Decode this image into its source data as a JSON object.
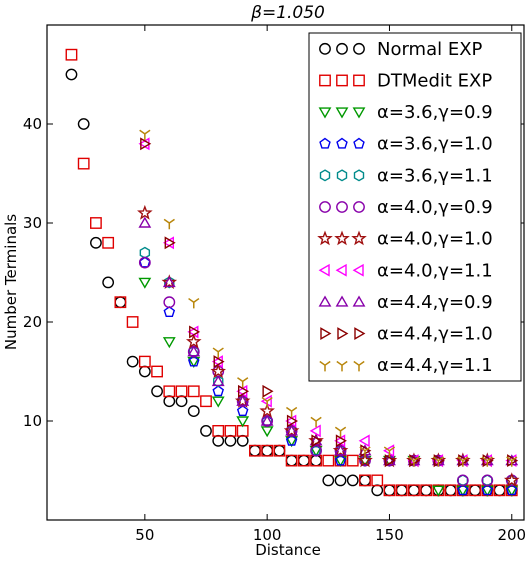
{
  "chart_data": {
    "type": "scatter",
    "title": "β=1.050",
    "xlabel": "Distance",
    "ylabel": "Number Terminals",
    "xlim": [
      10,
      205
    ],
    "ylim": [
      0,
      50
    ],
    "xticks": [
      50,
      100,
      150,
      200
    ],
    "yticks": [
      10,
      20,
      30,
      40
    ],
    "grid": false,
    "legend_placement": "top-right",
    "series": [
      {
        "name": "Normal EXP",
        "marker": "circle",
        "color": "#000000",
        "points": [
          [
            20,
            45
          ],
          [
            25,
            40
          ],
          [
            30,
            28
          ],
          [
            35,
            24
          ],
          [
            40,
            22
          ],
          [
            45,
            16
          ],
          [
            50,
            15
          ],
          [
            55,
            13
          ],
          [
            60,
            12
          ],
          [
            65,
            12
          ],
          [
            70,
            11
          ],
          [
            75,
            9
          ],
          [
            80,
            8
          ],
          [
            85,
            8
          ],
          [
            90,
            8
          ],
          [
            95,
            7
          ],
          [
            100,
            7
          ],
          [
            105,
            7
          ],
          [
            110,
            6
          ],
          [
            115,
            6
          ],
          [
            120,
            6
          ],
          [
            125,
            4
          ],
          [
            130,
            4
          ],
          [
            135,
            4
          ],
          [
            140,
            4
          ],
          [
            145,
            3
          ],
          [
            150,
            3
          ],
          [
            155,
            3
          ],
          [
            160,
            3
          ],
          [
            165,
            3
          ],
          [
            170,
            3
          ],
          [
            175,
            3
          ],
          [
            180,
            3
          ],
          [
            185,
            3
          ],
          [
            190,
            3
          ],
          [
            195,
            3
          ],
          [
            200,
            3
          ]
        ]
      },
      {
        "name": "DTMedit EXP",
        "marker": "square",
        "color": "#e00000",
        "points": [
          [
            20,
            47
          ],
          [
            25,
            36
          ],
          [
            30,
            30
          ],
          [
            35,
            28
          ],
          [
            40,
            22
          ],
          [
            45,
            20
          ],
          [
            50,
            16
          ],
          [
            55,
            15
          ],
          [
            60,
            13
          ],
          [
            65,
            13
          ],
          [
            70,
            13
          ],
          [
            75,
            12
          ],
          [
            80,
            9
          ],
          [
            85,
            9
          ],
          [
            90,
            9
          ],
          [
            95,
            7
          ],
          [
            100,
            7
          ],
          [
            105,
            7
          ],
          [
            110,
            6
          ],
          [
            115,
            6
          ],
          [
            120,
            6
          ],
          [
            125,
            6
          ],
          [
            130,
            6
          ],
          [
            135,
            6
          ],
          [
            140,
            4
          ],
          [
            145,
            4
          ],
          [
            150,
            3
          ],
          [
            155,
            3
          ],
          [
            160,
            3
          ],
          [
            165,
            3
          ],
          [
            170,
            3
          ],
          [
            175,
            3
          ],
          [
            180,
            3
          ],
          [
            185,
            3
          ],
          [
            190,
            3
          ],
          [
            195,
            3
          ],
          [
            200,
            3
          ]
        ]
      },
      {
        "name": "α=3.6,γ=0.9",
        "marker": "triangle-down",
        "color": "#009900",
        "points": [
          [
            50,
            24
          ],
          [
            60,
            18
          ],
          [
            70,
            16
          ],
          [
            80,
            12
          ],
          [
            90,
            10
          ],
          [
            100,
            9
          ],
          [
            110,
            8
          ],
          [
            120,
            7
          ],
          [
            130,
            6
          ],
          [
            140,
            6
          ],
          [
            150,
            6
          ],
          [
            160,
            6
          ],
          [
            170,
            3
          ],
          [
            180,
            3
          ],
          [
            190,
            3
          ],
          [
            200,
            3
          ]
        ]
      },
      {
        "name": "α=3.6,γ=1.0",
        "marker": "pentagon",
        "color": "#0000ee",
        "points": [
          [
            50,
            26
          ],
          [
            60,
            21
          ],
          [
            70,
            16
          ],
          [
            80,
            13
          ],
          [
            90,
            11
          ],
          [
            100,
            10
          ],
          [
            110,
            8
          ],
          [
            120,
            7
          ],
          [
            130,
            6
          ],
          [
            140,
            6
          ],
          [
            150,
            6
          ],
          [
            160,
            6
          ],
          [
            170,
            6
          ],
          [
            180,
            3
          ],
          [
            190,
            3
          ],
          [
            200,
            3
          ]
        ]
      },
      {
        "name": "α=3.6,γ=1.1",
        "marker": "hexagon",
        "color": "#008b8b",
        "points": [
          [
            50,
            27
          ],
          [
            60,
            24
          ],
          [
            70,
            17
          ],
          [
            80,
            14
          ],
          [
            90,
            12
          ],
          [
            100,
            10
          ],
          [
            110,
            9
          ],
          [
            120,
            7
          ],
          [
            130,
            7
          ],
          [
            140,
            6
          ],
          [
            150,
            6
          ],
          [
            160,
            6
          ],
          [
            170,
            6
          ],
          [
            180,
            4
          ],
          [
            190,
            4
          ],
          [
            200,
            4
          ]
        ]
      },
      {
        "name": "α=4.0,γ=0.9",
        "marker": "circle",
        "color": "#8800aa",
        "points": [
          [
            50,
            26
          ],
          [
            60,
            22
          ],
          [
            70,
            17
          ],
          [
            80,
            15
          ],
          [
            90,
            12
          ],
          [
            100,
            10
          ],
          [
            110,
            9
          ],
          [
            120,
            7
          ],
          [
            130,
            7
          ],
          [
            140,
            6
          ],
          [
            150,
            6
          ],
          [
            160,
            6
          ],
          [
            170,
            6
          ],
          [
            180,
            4
          ],
          [
            190,
            4
          ],
          [
            200,
            4
          ]
        ]
      },
      {
        "name": "α=4.0,γ=1.0",
        "marker": "star",
        "color": "#a01010",
        "points": [
          [
            50,
            31
          ],
          [
            60,
            24
          ],
          [
            70,
            18
          ],
          [
            80,
            15
          ],
          [
            90,
            12
          ],
          [
            100,
            11
          ],
          [
            110,
            9
          ],
          [
            120,
            8
          ],
          [
            130,
            7
          ],
          [
            140,
            6
          ],
          [
            150,
            6
          ],
          [
            160,
            6
          ],
          [
            170,
            6
          ],
          [
            180,
            6
          ],
          [
            190,
            6
          ],
          [
            200,
            4
          ]
        ]
      },
      {
        "name": "α=4.0,γ=1.1",
        "marker": "triangle-left",
        "color": "#ff00ff",
        "points": [
          [
            50,
            38
          ],
          [
            60,
            28
          ],
          [
            70,
            19
          ],
          [
            80,
            16
          ],
          [
            90,
            13
          ],
          [
            100,
            12
          ],
          [
            110,
            10
          ],
          [
            120,
            9
          ],
          [
            130,
            8
          ],
          [
            140,
            8
          ],
          [
            150,
            7
          ],
          [
            160,
            6
          ],
          [
            170,
            6
          ],
          [
            180,
            6
          ],
          [
            190,
            6
          ],
          [
            200,
            6
          ]
        ]
      },
      {
        "name": "α=4.4,γ=0.9",
        "marker": "triangle-up",
        "color": "#8800aa",
        "points": [
          [
            50,
            30
          ],
          [
            60,
            24
          ],
          [
            70,
            17
          ],
          [
            80,
            14
          ],
          [
            90,
            12
          ],
          [
            100,
            10
          ],
          [
            110,
            9
          ],
          [
            120,
            8
          ],
          [
            130,
            7
          ],
          [
            140,
            7
          ],
          [
            150,
            6
          ],
          [
            160,
            6
          ],
          [
            170,
            6
          ],
          [
            180,
            6
          ],
          [
            190,
            6
          ],
          [
            200,
            6
          ]
        ]
      },
      {
        "name": "α=4.4,γ=1.0",
        "marker": "triangle-right",
        "color": "#8b0000",
        "points": [
          [
            50,
            38
          ],
          [
            60,
            28
          ],
          [
            70,
            19
          ],
          [
            80,
            16
          ],
          [
            90,
            13
          ],
          [
            100,
            13
          ],
          [
            110,
            10
          ],
          [
            120,
            8
          ],
          [
            130,
            8
          ],
          [
            140,
            7
          ],
          [
            150,
            6
          ],
          [
            160,
            6
          ],
          [
            170,
            6
          ],
          [
            180,
            6
          ],
          [
            190,
            6
          ],
          [
            200,
            6
          ]
        ]
      },
      {
        "name": "α=4.4,γ=1.1",
        "marker": "tri-down",
        "color": "#b8860b",
        "points": [
          [
            50,
            39
          ],
          [
            60,
            30
          ],
          [
            70,
            22
          ],
          [
            80,
            17
          ],
          [
            90,
            14
          ],
          [
            100,
            12
          ],
          [
            110,
            11
          ],
          [
            120,
            10
          ],
          [
            130,
            9
          ],
          [
            140,
            7
          ],
          [
            150,
            7
          ],
          [
            160,
            6
          ],
          [
            170,
            6
          ],
          [
            180,
            6
          ],
          [
            190,
            6
          ],
          [
            200,
            6
          ]
        ]
      }
    ]
  }
}
